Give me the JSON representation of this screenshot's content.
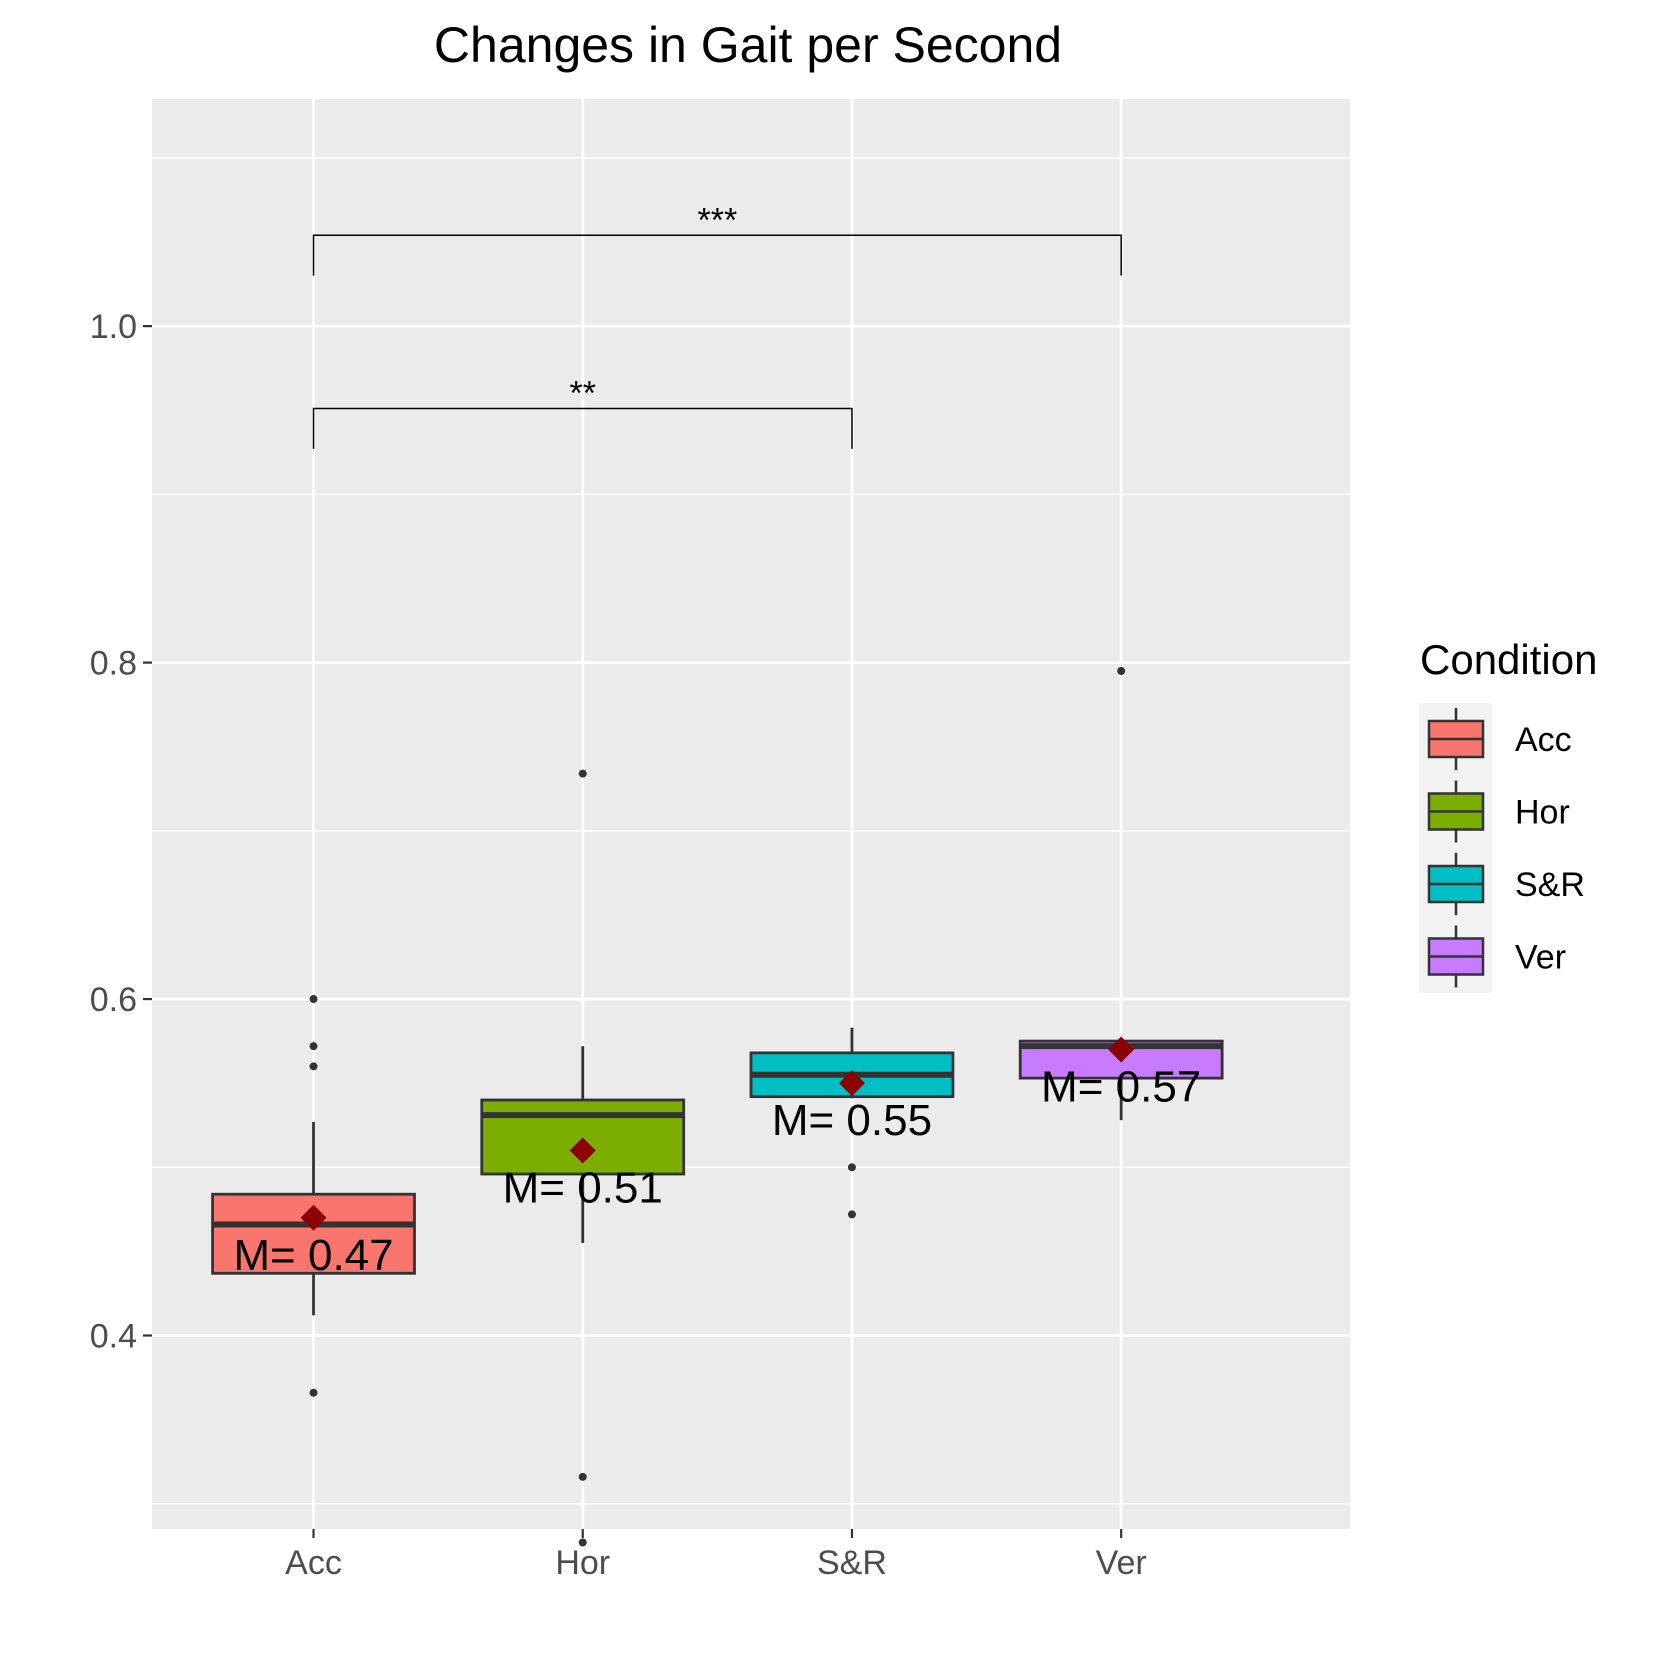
{
  "chart_data": {
    "type": "box",
    "title": "Changes in Gait per Second",
    "xlabel": "",
    "ylabel": "",
    "ylim": [
      0.285,
      1.135
    ],
    "yticks": [
      0.4,
      0.6,
      0.8,
      1.0
    ],
    "yticklabels": [
      "0.4",
      "0.6",
      "0.8",
      "1.0"
    ],
    "categories": [
      "Acc",
      "Hor",
      "S&R",
      "Ver"
    ],
    "colors": [
      "#F8766D",
      "#7CAE00",
      "#00BFC4",
      "#C77CFF"
    ],
    "mean_color": "#8B0000",
    "grid": true,
    "boxes": [
      {
        "category": "Acc",
        "whisker_low": 0.412,
        "q1": 0.437,
        "median": 0.466,
        "q3": 0.484,
        "whisker_high": 0.527,
        "mean": 0.47,
        "mean_label": "M= 0.47",
        "outliers": [
          0.366,
          0.56,
          0.572,
          0.6
        ]
      },
      {
        "category": "Hor",
        "whisker_low": 0.455,
        "q1": 0.496,
        "median": 0.531,
        "q3": 0.54,
        "whisker_high": 0.572,
        "mean": 0.51,
        "mean_label": "M= 0.51",
        "outliers": [
          0.316,
          0.277,
          0.734
        ]
      },
      {
        "category": "S&R",
        "whisker_low": 0.541,
        "q1": 0.542,
        "median": 0.555,
        "q3": 0.568,
        "whisker_high": 0.583,
        "mean": 0.55,
        "mean_label": "M= 0.55",
        "outliers": [
          0.5,
          0.472
        ]
      },
      {
        "category": "Ver",
        "whisker_low": 0.528,
        "q1": 0.553,
        "median": 0.572,
        "q3": 0.575,
        "whisker_high": 0.575,
        "mean": 0.57,
        "mean_label": "M= 0.57",
        "outliers": [
          0.795
        ]
      }
    ],
    "significance": [
      {
        "from": "Acc",
        "to": "Ver",
        "y": 1.054,
        "tip_y": 1.03,
        "label": "***"
      },
      {
        "from": "Acc",
        "to": "S&R",
        "y": 0.951,
        "tip_y": 0.927,
        "label": "**"
      }
    ],
    "legend": {
      "title": "Condition",
      "position": "right",
      "items": [
        "Acc",
        "Hor",
        "S&R",
        "Ver"
      ]
    }
  }
}
